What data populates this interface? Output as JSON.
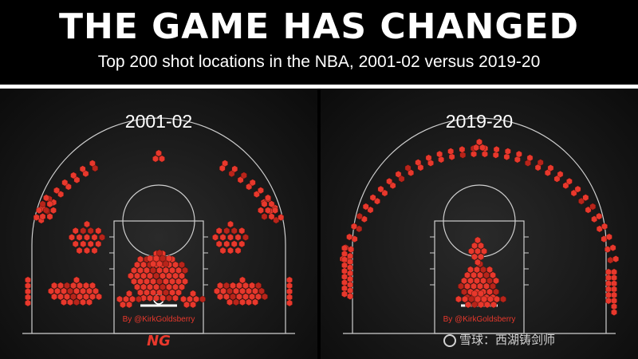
{
  "header": {
    "title": "THE GAME HAS CHANGED",
    "subtitle": "Top 200 shot locations in the NBA, 2001-02 versus 2019-20"
  },
  "colors": {
    "background": "#000000",
    "hex_fill": "#e8382c",
    "hex_dark": "#b8241a",
    "court_line": "#cfcfcf"
  },
  "panels": [
    {
      "label": "2001-02",
      "credit": "By @KirkGoldsberry"
    },
    {
      "label": "2019-20",
      "credit": "By @KirkGoldsberry"
    }
  ],
  "logo": {
    "text": "NG"
  },
  "watermark": {
    "text": "雪球：西湖铸剑师"
  },
  "chart_data": [
    {
      "type": "heatmap",
      "title": "2001-02",
      "encoding": "hexbin shot-location map, each hexagon = one of the top 200 shot locations",
      "regions": [
        {
          "name": "restricted area / paint",
          "share": "high"
        },
        {
          "name": "mid-range elbows and wings",
          "share": "high"
        },
        {
          "name": "above-the-break three",
          "share": "medium"
        },
        {
          "name": "corner three",
          "share": "low"
        }
      ]
    },
    {
      "type": "heatmap",
      "title": "2019-20",
      "encoding": "hexbin shot-location map, each hexagon = one of the top 200 shot locations",
      "regions": [
        {
          "name": "restricted area / paint",
          "share": "high"
        },
        {
          "name": "mid-range elbows and wings",
          "share": "none"
        },
        {
          "name": "above-the-break three",
          "share": "high"
        },
        {
          "name": "corner three",
          "share": "high"
        }
      ]
    }
  ]
}
